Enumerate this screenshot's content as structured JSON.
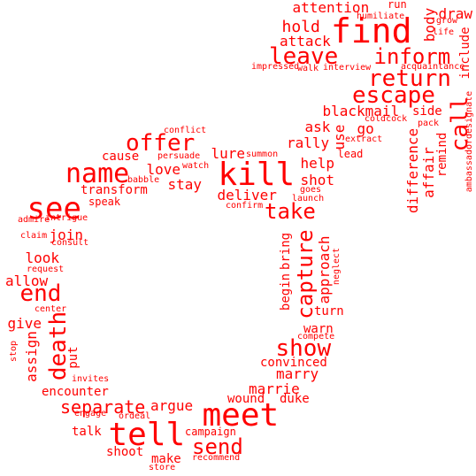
{
  "colors": {
    "word": "#ff0000",
    "background": "#ffffff"
  },
  "words": [
    {
      "text": "find"
    },
    {
      "text": "kill"
    },
    {
      "text": "meet"
    },
    {
      "text": "tell"
    },
    {
      "text": "name"
    },
    {
      "text": "see"
    },
    {
      "text": "leave"
    },
    {
      "text": "inform"
    },
    {
      "text": "return"
    },
    {
      "text": "escape"
    },
    {
      "text": "offer"
    },
    {
      "text": "call"
    },
    {
      "text": "take"
    },
    {
      "text": "show"
    },
    {
      "text": "capture"
    },
    {
      "text": "send"
    },
    {
      "text": "end"
    },
    {
      "text": "death"
    },
    {
      "text": "separate"
    },
    {
      "text": "attention"
    },
    {
      "text": "hold"
    },
    {
      "text": "attack"
    },
    {
      "text": "draw"
    },
    {
      "text": "body"
    },
    {
      "text": "include"
    },
    {
      "text": "blackmail"
    },
    {
      "text": "side"
    },
    {
      "text": "ask"
    },
    {
      "text": "rally"
    },
    {
      "text": "use"
    },
    {
      "text": "go"
    },
    {
      "text": "help"
    },
    {
      "text": "shot"
    },
    {
      "text": "difference"
    },
    {
      "text": "affair"
    },
    {
      "text": "remind"
    },
    {
      "text": "lure"
    },
    {
      "text": "love"
    },
    {
      "text": "stay"
    },
    {
      "text": "cause"
    },
    {
      "text": "transform"
    },
    {
      "text": "deliver"
    },
    {
      "text": "join"
    },
    {
      "text": "look"
    },
    {
      "text": "allow"
    },
    {
      "text": "give"
    },
    {
      "text": "assign"
    },
    {
      "text": "put"
    },
    {
      "text": "encounter"
    },
    {
      "text": "argue"
    },
    {
      "text": "talk"
    },
    {
      "text": "shoot"
    },
    {
      "text": "make"
    },
    {
      "text": "marry"
    },
    {
      "text": "marrie"
    },
    {
      "text": "wound"
    },
    {
      "text": "duke"
    },
    {
      "text": "convinced"
    },
    {
      "text": "warn"
    },
    {
      "text": "turn"
    },
    {
      "text": "approach"
    },
    {
      "text": "begin"
    },
    {
      "text": "bring"
    },
    {
      "text": "lead"
    },
    {
      "text": "speak"
    },
    {
      "text": "campaign"
    },
    {
      "text": "run"
    },
    {
      "text": "humiliate"
    },
    {
      "text": "grow"
    },
    {
      "text": "life"
    },
    {
      "text": "acquaintance"
    },
    {
      "text": "impressed"
    },
    {
      "text": "walk"
    },
    {
      "text": "interview"
    },
    {
      "text": "pack"
    },
    {
      "text": "coldcock"
    },
    {
      "text": "ambassadordesignate"
    },
    {
      "text": "extract"
    },
    {
      "text": "conflict"
    },
    {
      "text": "persuade"
    },
    {
      "text": "summon"
    },
    {
      "text": "watch"
    },
    {
      "text": "babble"
    },
    {
      "text": "goes"
    },
    {
      "text": "launch"
    },
    {
      "text": "confirm"
    },
    {
      "text": "admire"
    },
    {
      "text": "intrigue"
    },
    {
      "text": "claim"
    },
    {
      "text": "consult"
    },
    {
      "text": "request"
    },
    {
      "text": "center"
    },
    {
      "text": "neglect"
    },
    {
      "text": "compete"
    },
    {
      "text": "stop"
    },
    {
      "text": "invites"
    },
    {
      "text": "engage"
    },
    {
      "text": "ordeal"
    },
    {
      "text": "recommend"
    },
    {
      "text": "store"
    }
  ]
}
